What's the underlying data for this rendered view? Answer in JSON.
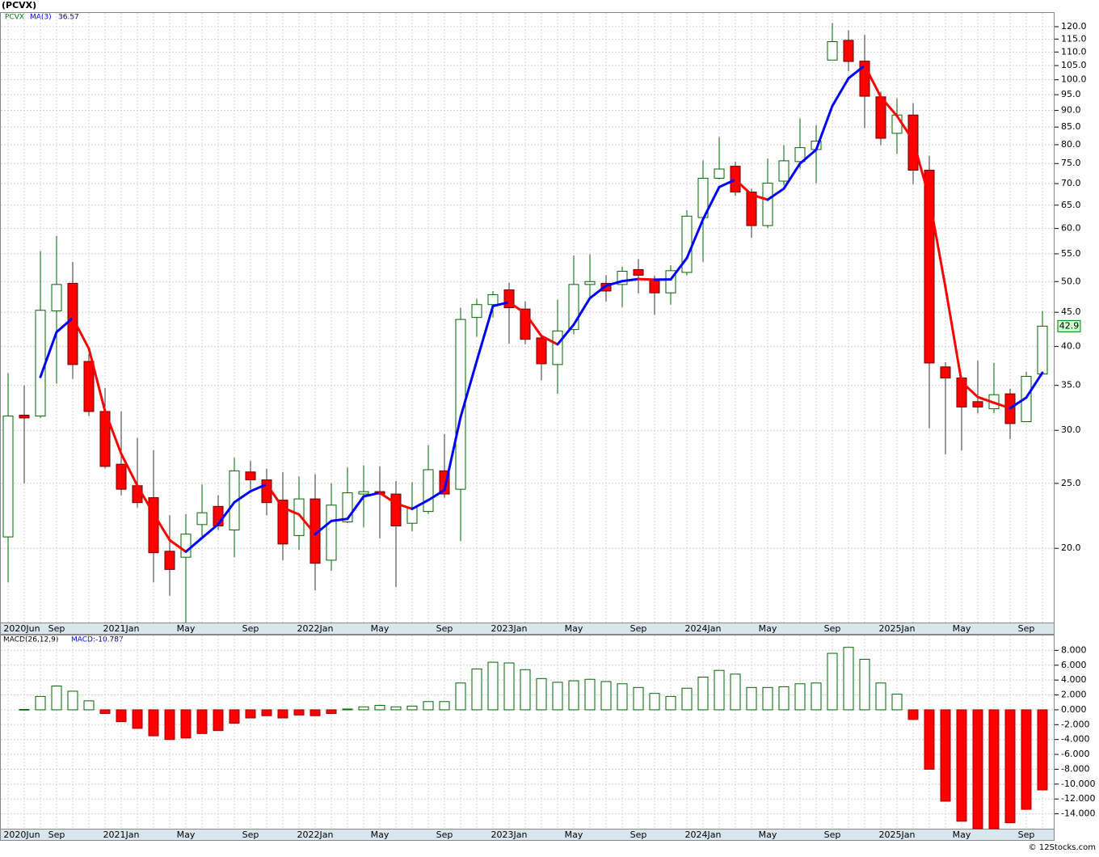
{
  "chart_data": [
    {
      "type": "candlestick",
      "title": "(PCVX)",
      "categories": [
        "2020Jun",
        null,
        null,
        "Sep",
        null,
        null,
        null,
        "2021Jan",
        null,
        null,
        null,
        "May",
        null,
        null,
        null,
        "Sep",
        null,
        null,
        null,
        "2022Jan",
        null,
        null,
        null,
        "May",
        null,
        null,
        null,
        "Sep",
        null,
        null,
        null,
        "2023Jan",
        null,
        null,
        null,
        "May",
        null,
        null,
        null,
        "Sep",
        null,
        null,
        null,
        "2024Jan",
        null,
        null,
        null,
        "May",
        null,
        null,
        null,
        "Sep",
        null,
        null,
        null,
        "2025Jan",
        null,
        null,
        null,
        "May",
        null,
        null,
        null,
        "Sep",
        null
      ],
      "series": [
        {
          "name": "PCVX",
          "up_color": "#006400",
          "down_color": "#ff0000",
          "open": [
            20.8,
            31.6,
            31.5,
            45.2,
            49.7,
            38,
            32,
            26.7,
            24.8,
            23.8,
            19.8,
            19.4,
            21.7,
            23.1,
            21.3,
            26,
            25.3,
            23.6,
            20.9,
            23.7,
            19.2,
            21.9,
            24.1,
            24.3,
            24.1,
            21.8,
            22.7,
            26.1,
            24.5,
            44.2,
            46.2,
            48.6,
            45.5,
            41.2,
            37.6,
            42.4,
            49.5,
            49.7,
            49.5,
            52.1,
            50.3,
            48.1,
            51.6,
            62.3,
            71.3,
            74.3,
            68,
            60.6,
            70.6,
            75.5,
            78.7,
            107,
            114.5,
            106.6,
            94.3,
            83.2,
            88.6,
            73.3,
            37.3,
            35.9,
            33.1,
            32.3,
            34,
            30.9,
            36.4
          ],
          "high": [
            36.5,
            35,
            55.5,
            58.5,
            53.5,
            39,
            34.7,
            32,
            29.2,
            28,
            22.4,
            22.5,
            24.9,
            24,
            27.3,
            27,
            26.3,
            26,
            25.6,
            25.8,
            25,
            26.4,
            26.6,
            26.5,
            25.2,
            25.1,
            28.5,
            29.6,
            45.7,
            47.1,
            48.4,
            49.8,
            46.7,
            41.7,
            47,
            54.7,
            54.9,
            51.1,
            52.6,
            54,
            51,
            52.9,
            63.9,
            75.8,
            82.1,
            75.5,
            68.8,
            76.3,
            79.9,
            87.6,
            85.6,
            121.5,
            118.5,
            116.7,
            96,
            93.8,
            92.3,
            77,
            37.9,
            36.2,
            38.1,
            37.8,
            34.6,
            36.7,
            45.2
          ],
          "low": [
            17.8,
            25,
            31.3,
            35.2,
            35.8,
            31.5,
            26.3,
            24,
            23,
            17.8,
            17,
            15.5,
            20.8,
            21.3,
            19.4,
            24.5,
            22.4,
            19.2,
            19.9,
            17.3,
            18.5,
            21.8,
            21.5,
            20.7,
            17.5,
            21.2,
            22.5,
            23.8,
            20.5,
            41.4,
            44.2,
            40.4,
            40.3,
            35.6,
            34,
            41.7,
            47,
            46.7,
            45.8,
            48,
            44.6,
            46.2,
            51.1,
            53.5,
            71,
            67.1,
            58.1,
            60.1,
            69.6,
            73.7,
            70.1,
            107,
            103,
            84.7,
            79.9,
            77.5,
            69.9,
            30.2,
            27.6,
            28,
            31.8,
            31.8,
            29.1,
            30.9,
            36.4
          ],
          "close": [
            31.5,
            31.3,
            45.3,
            49.5,
            37.6,
            32,
            26.5,
            24.5,
            23.4,
            19.7,
            18.6,
            21,
            22.6,
            21.6,
            26.1,
            25.3,
            23.4,
            20.3,
            23.7,
            19,
            23.2,
            24.2,
            24.3,
            24.1,
            21.6,
            23,
            26.2,
            24.1,
            43.9,
            46.2,
            47.8,
            45.7,
            41,
            37.7,
            42.2,
            49.5,
            50,
            48.4,
            51.8,
            51.1,
            48.1,
            51.9,
            62.6,
            71.3,
            73.6,
            68,
            60.6,
            70.1,
            75.7,
            79.2,
            81,
            114,
            106.5,
            94.5,
            81.8,
            88.6,
            73.3,
            37.8,
            35.9,
            32.5,
            32.5,
            33.9,
            30.7,
            36.1,
            42.9
          ]
        }
      ],
      "ma": {
        "name": "MA(3)",
        "up_color": "#0000ff",
        "down_color": "#ff0000",
        "values": [
          null,
          null,
          36.03,
          42.03,
          44.13,
          39.7,
          32.03,
          27.67,
          24.8,
          22.53,
          20.57,
          19.77,
          20.73,
          21.73,
          23.43,
          24.33,
          24.93,
          23,
          22.47,
          21,
          21.97,
          22.13,
          23.9,
          24.2,
          23.33,
          22.9,
          23.6,
          24.43,
          31.4,
          38.07,
          45.97,
          46.57,
          44.83,
          41.47,
          40.3,
          43.13,
          47.23,
          49.3,
          50.07,
          50.43,
          50.33,
          50.37,
          54.2,
          61.93,
          69.17,
          70.97,
          67.4,
          66.23,
          68.8,
          75,
          78.63,
          91.4,
          100.5,
          105,
          94.27,
          88.3,
          81.23,
          66.57,
          49,
          35.4,
          33.63,
          32.97,
          32.37,
          33.57,
          36.57
        ]
      },
      "log_scale": true,
      "grid": true,
      "ylim": [
        15.5,
        125.8
      ],
      "yticks": [
        {
          "value": 20,
          "label": "20.0"
        },
        {
          "value": 25,
          "label": "25.0"
        },
        {
          "value": 30,
          "label": "30.0"
        },
        {
          "value": 35,
          "label": "35.0"
        },
        {
          "value": 40,
          "label": "40.0"
        },
        {
          "value": 45,
          "label": "45.0"
        },
        {
          "value": 50,
          "label": "50.0"
        },
        {
          "value": 55,
          "label": "55.0"
        },
        {
          "value": 60,
          "label": "60.0"
        },
        {
          "value": 65,
          "label": "65.0"
        },
        {
          "value": 70,
          "label": "70.0"
        },
        {
          "value": 75,
          "label": "75.0"
        },
        {
          "value": 80,
          "label": "80.0"
        },
        {
          "value": 85,
          "label": "85.0"
        },
        {
          "value": 90,
          "label": "90.0"
        },
        {
          "value": 95,
          "label": "95.0"
        },
        {
          "value": 100,
          "label": "100.0"
        },
        {
          "value": 105,
          "label": "105.0"
        },
        {
          "value": 110,
          "label": "110.0"
        },
        {
          "value": 115,
          "label": "115.0"
        },
        {
          "value": 120,
          "label": "120.0"
        }
      ]
    },
    {
      "type": "bar",
      "name": "MACD(26,12,9)",
      "value_caption": "MACD:",
      "up_color": "#006400",
      "down_color": "#ff0000",
      "values": [
        null,
        0.05,
        1.8,
        3.2,
        2.5,
        1.2,
        -0.5,
        -1.6,
        -2.5,
        -3.5,
        -4,
        -3.8,
        -3.2,
        -2.8,
        -1.8,
        -1.1,
        -0.8,
        -1.1,
        -0.7,
        -0.8,
        -0.5,
        0.1,
        0.4,
        0.6,
        0.4,
        0.5,
        1.1,
        1.1,
        3.6,
        5.5,
        6.4,
        6.3,
        5.4,
        4.2,
        3.7,
        3.9,
        4.1,
        3.8,
        3.5,
        3,
        2.2,
        1.8,
        2.9,
        4.4,
        5.3,
        4.8,
        3,
        3,
        3.1,
        3.5,
        3.6,
        7.6,
        8.4,
        6.8,
        3.6,
        2.1,
        -1.3,
        -8,
        -12.3,
        -15,
        -16,
        -16,
        -15.2,
        -13.4,
        -10.787
      ],
      "grid": true,
      "ylim": [
        -16,
        10
      ],
      "yticks": [
        {
          "value": 8,
          "label": "8.000"
        },
        {
          "value": 6,
          "label": "6.000"
        },
        {
          "value": 4,
          "label": "4.000"
        },
        {
          "value": 2,
          "label": "2.000"
        },
        {
          "value": 0,
          "label": "0.000"
        },
        {
          "value": -2,
          "label": "-2.000"
        },
        {
          "value": -4,
          "label": "-4.000"
        },
        {
          "value": -6,
          "label": "-6.000"
        },
        {
          "value": -8,
          "label": "-8.000"
        },
        {
          "value": -10,
          "label": "-10.000"
        },
        {
          "value": -12,
          "label": "-12.000"
        },
        {
          "value": -14,
          "label": "-14.000"
        }
      ]
    }
  ],
  "footer": "© 12Stocks.com"
}
